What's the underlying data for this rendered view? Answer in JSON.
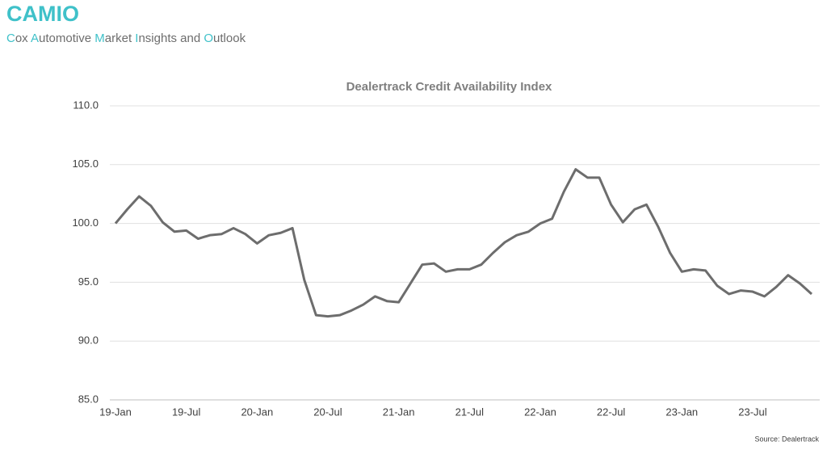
{
  "header": {
    "title": "CAMIO",
    "subtitle": "Cox Automotive Market Insights and Outlook"
  },
  "chart_data": {
    "type": "line",
    "title": "Dealertrack Credit Availability Index",
    "source": "Source: Dealertrack",
    "categories": [
      "19-Jan",
      null,
      null,
      null,
      null,
      null,
      "19-Jul",
      null,
      null,
      null,
      null,
      null,
      "20-Jan",
      null,
      null,
      null,
      null,
      null,
      "20-Jul",
      null,
      null,
      null,
      null,
      null,
      "21-Jan",
      null,
      null,
      null,
      null,
      null,
      "21-Jul",
      null,
      null,
      null,
      null,
      null,
      "22-Jan",
      null,
      null,
      null,
      null,
      null,
      "22-Jul",
      null,
      null,
      null,
      null,
      null,
      "23-Jan",
      null,
      null,
      null,
      null,
      null,
      "23-Jul",
      null,
      null,
      null,
      null,
      null
    ],
    "series": [
      {
        "name": "Dealertrack Credit Availability Index",
        "color": "#6d6d6d",
        "values": [
          100.0,
          101.2,
          102.3,
          101.5,
          100.1,
          99.3,
          99.4,
          98.7,
          99.0,
          99.1,
          99.6,
          99.1,
          98.3,
          99.0,
          99.2,
          99.6,
          95.2,
          92.2,
          92.1,
          92.2,
          92.6,
          93.1,
          93.8,
          93.4,
          93.3,
          94.9,
          96.5,
          96.6,
          95.9,
          96.1,
          96.1,
          96.5,
          97.5,
          98.4,
          99.0,
          99.3,
          100.0,
          100.4,
          102.7,
          104.6,
          103.9,
          103.9,
          101.6,
          100.1,
          101.2,
          101.6,
          99.7,
          97.5,
          95.9,
          96.1,
          96.0,
          94.7,
          94.0,
          94.3,
          94.2,
          93.8,
          94.6,
          95.6,
          94.9,
          94.0
        ]
      }
    ],
    "ylim": [
      85,
      110
    ],
    "yticks": [
      {
        "value": 85,
        "label": "85.0"
      },
      {
        "value": 90,
        "label": "90.0"
      },
      {
        "value": 95,
        "label": "95.0"
      },
      {
        "value": 100,
        "label": "100.0"
      },
      {
        "value": 105,
        "label": "105.0"
      },
      {
        "value": 110,
        "label": "110.0"
      }
    ],
    "grid": true
  }
}
